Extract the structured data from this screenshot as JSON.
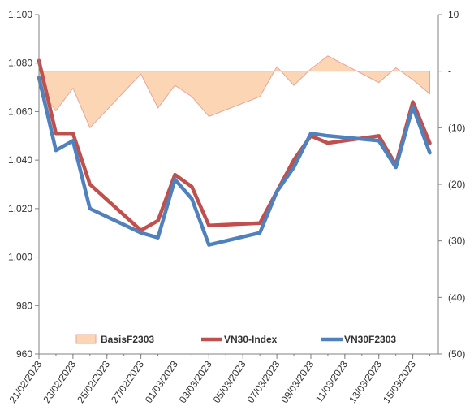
{
  "chart_data": {
    "type": "line",
    "title": "",
    "xlabel": "",
    "ylabel": "",
    "x_tick_labels": [
      "21/02/2023",
      "23/02/2023",
      "25/02/2023",
      "27/02/2023",
      "01/03/2023",
      "03/03/2023",
      "05/03/2023",
      "07/03/2023",
      "09/03/2023",
      "11/03/2023",
      "13/03/2023",
      "15/03/2023"
    ],
    "x": [
      "21/02/2023",
      "22/02/2023",
      "23/02/2023",
      "24/02/2023",
      "27/02/2023",
      "28/02/2023",
      "01/03/2023",
      "02/03/2023",
      "03/03/2023",
      "06/03/2023",
      "07/03/2023",
      "08/03/2023",
      "09/03/2023",
      "10/03/2023",
      "13/03/2023",
      "14/03/2023",
      "15/03/2023",
      "16/03/2023"
    ],
    "x_pos": [
      0,
      1,
      2,
      3,
      6,
      7,
      8,
      9,
      10,
      13,
      14,
      15,
      16,
      17,
      20,
      21,
      22,
      23
    ],
    "x_max": 23.5,
    "y_left": {
      "min": 960,
      "max": 1100,
      "step": 20,
      "ticks": [
        "960",
        "980",
        "1,000",
        "1,020",
        "1,040",
        "1,060",
        "1,080",
        "1,100"
      ]
    },
    "y_right": {
      "min": -50,
      "max": 10,
      "step": 10,
      "ticks": [
        "(50)",
        "(40)",
        "(30)",
        "(20)",
        "(10)",
        "-",
        "10"
      ]
    },
    "series": [
      {
        "name": "BasisF2303",
        "type": "area",
        "axis": "right",
        "color": "#fcd5b5",
        "stroke": "#e4a79a",
        "values": [
          -3,
          -7,
          -3,
          -10,
          -0.5,
          -6.5,
          -2.5,
          -4.5,
          -8,
          -4.5,
          0.8,
          -2.5,
          0.4,
          2.7,
          -2,
          0.6,
          -1.5,
          -4
        ]
      },
      {
        "name": "VN30-Index",
        "type": "line",
        "axis": "left",
        "color": "#c0504d",
        "values": [
          1081,
          1051,
          1051,
          1030,
          1011,
          1015,
          1034,
          1029,
          1013,
          1014,
          1027,
          1040,
          1050,
          1047,
          1050,
          1038,
          1064,
          1047
        ]
      },
      {
        "name": "VN30F2303",
        "type": "line",
        "axis": "left",
        "color": "#4f81bd",
        "values": [
          1074,
          1044,
          1048,
          1020,
          1010,
          1008,
          1032,
          1024,
          1005,
          1010,
          1027,
          1037,
          1051,
          1050,
          1048,
          1037,
          1062,
          1043
        ]
      }
    ],
    "legend": {
      "position": "bottom-inside"
    },
    "grid": false
  }
}
